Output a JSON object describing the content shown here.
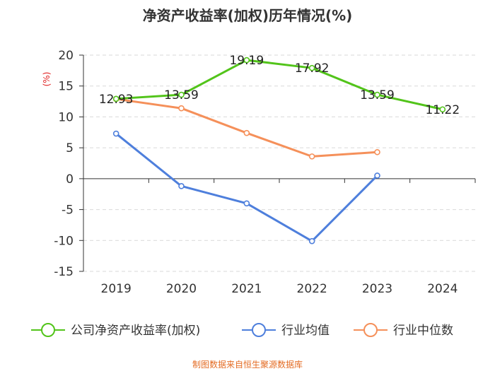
{
  "chart_data": {
    "type": "line",
    "title": "净资产收益率(加权)历年情况(%)",
    "ylabel": "(%)",
    "categories": [
      "2019",
      "2020",
      "2021",
      "2022",
      "2023",
      "2024"
    ],
    "ylim": [
      -15,
      20
    ],
    "yticks": [
      20,
      15,
      10,
      5,
      0,
      -5,
      -10,
      -15
    ],
    "series": [
      {
        "name": "公司净资产收益率(加权)",
        "color": "#52c41a",
        "values": [
          12.93,
          13.59,
          19.19,
          17.92,
          13.59,
          11.22
        ],
        "labels": [
          "12.93",
          "13.59",
          "19.19",
          "17.92",
          "13.59",
          "11.22"
        ]
      },
      {
        "name": "行业均值",
        "color": "#4e7fdc",
        "values": [
          7.3,
          -1.2,
          -4.0,
          -10.1,
          0.5,
          null
        ]
      },
      {
        "name": "行业中位数",
        "color": "#f5905a",
        "values": [
          12.9,
          11.4,
          7.4,
          3.6,
          4.3,
          null
        ]
      }
    ],
    "legend_position": "bottom"
  },
  "source": "制图数据来自恒生聚源数据库"
}
